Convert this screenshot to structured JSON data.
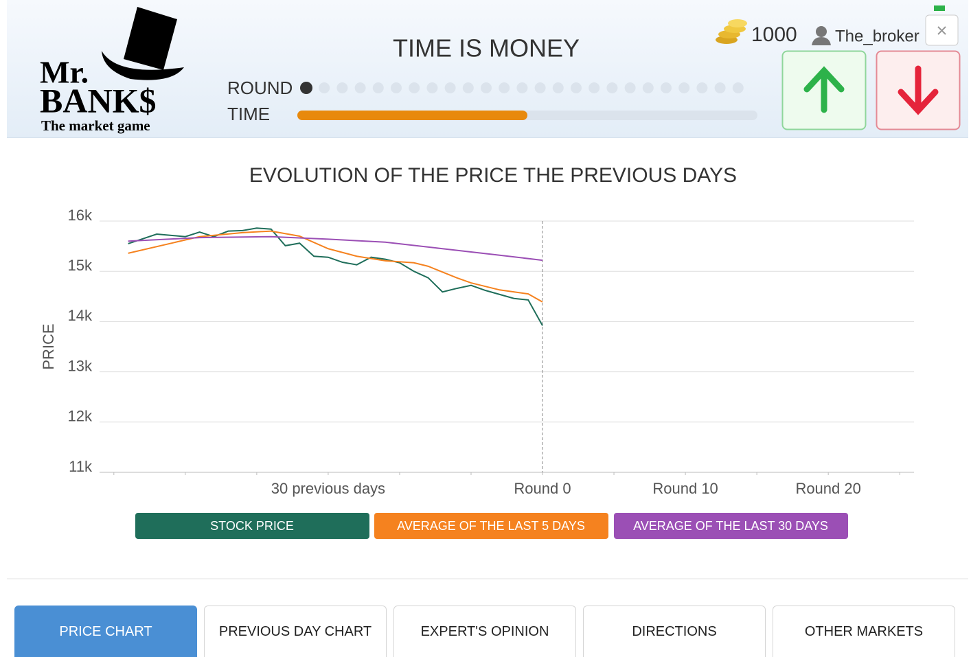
{
  "header": {
    "logo": {
      "line1": "Mr.",
      "line2": "BANK$",
      "tagline": "The market game"
    },
    "title": "TIME IS MONEY",
    "round_label": "ROUND",
    "time_label": "TIME",
    "round_dots": {
      "total": 25,
      "current": 0
    },
    "time_progress": 50,
    "coins": 1000,
    "username": "The_broker"
  },
  "chart_data": {
    "type": "line",
    "title": "EVOLUTION OF THE PRICE THE PREVIOUS DAYS",
    "y_label": "PRICE",
    "series": [
      {
        "name": "STOCK PRICE",
        "color": "#1f6e5a",
        "x": [
          -29,
          -27,
          -25,
          -24,
          -23,
          -22,
          -21,
          -20,
          -19,
          -18,
          -17,
          -16,
          -15,
          -14,
          -13,
          -12,
          -11,
          -10,
          -9,
          -8,
          -7,
          -6,
          -5,
          -4,
          -3,
          -2,
          -1,
          0
        ],
        "values": [
          15550,
          15740,
          15690,
          15780,
          15690,
          15800,
          15810,
          15860,
          15840,
          15510,
          15560,
          15300,
          15280,
          15180,
          15130,
          15280,
          15240,
          15170,
          15000,
          14870,
          14590,
          14660,
          14720,
          14620,
          14540,
          14460,
          14430,
          13920
        ]
      },
      {
        "name": "AVERAGE OF THE LAST 5 DAYS",
        "color": "#f5821f",
        "x": [
          -29,
          -24,
          -21,
          -19,
          -17,
          -15,
          -13,
          -11,
          -9,
          -8,
          -6,
          -5,
          -3,
          -1,
          0
        ],
        "values": [
          15360,
          15690,
          15770,
          15800,
          15700,
          15450,
          15300,
          15210,
          15170,
          15100,
          14870,
          14770,
          14630,
          14550,
          14390
        ]
      },
      {
        "name": "AVERAGE OF THE LAST 30 DAYS",
        "color": "#9b4fb5",
        "x": [
          -29,
          -24,
          -19,
          -15,
          -11,
          -7,
          -3,
          0
        ],
        "values": [
          15600,
          15670,
          15690,
          15640,
          15580,
          15450,
          15320,
          15220
        ]
      }
    ],
    "xlim": [
      -31,
      26
    ],
    "xticks": [
      {
        "value": -15,
        "label": "30 previous days"
      },
      {
        "value": 0,
        "label": "Round 0"
      },
      {
        "value": 10,
        "label": "Round 10"
      },
      {
        "value": 20,
        "label": "Round 20"
      }
    ],
    "xticks_minor": [
      -30,
      -25,
      -20,
      -10,
      -5,
      5,
      15,
      25
    ],
    "ylim": [
      11000,
      16000
    ],
    "yticks": [
      {
        "value": 16000,
        "label": "16k"
      },
      {
        "value": 15000,
        "label": "15k"
      },
      {
        "value": 14000,
        "label": "14k"
      },
      {
        "value": 13000,
        "label": "13k"
      },
      {
        "value": 12000,
        "label": "12k"
      },
      {
        "value": 11000,
        "label": "11k"
      }
    ],
    "grid": true,
    "vline": 0,
    "legend": "bottom"
  },
  "tabs": [
    "PRICE CHART",
    "PREVIOUS DAY CHART",
    "EXPERT'S OPINION",
    "DIRECTIONS",
    "OTHER MARKETS"
  ],
  "active_tab": 0
}
